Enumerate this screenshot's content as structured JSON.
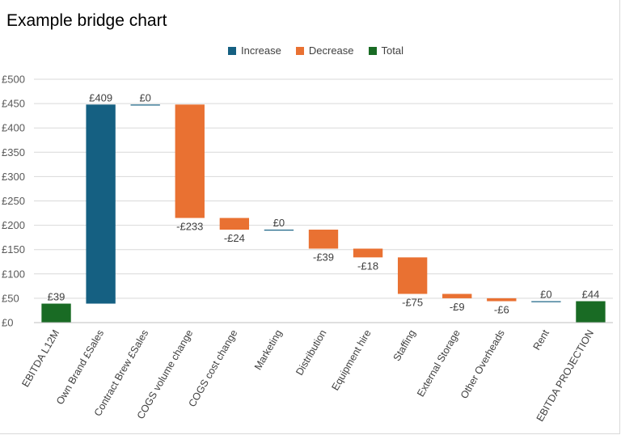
{
  "title": "Example bridge chart",
  "legend": [
    {
      "label": "Increase",
      "color": "#156082"
    },
    {
      "label": "Decrease",
      "color": "#E97132"
    },
    {
      "label": "Total",
      "color": "#196B24"
    }
  ],
  "chart_data": {
    "type": "bar",
    "subtype": "waterfall",
    "title": "Example bridge chart",
    "categories": [
      "EBITDA L12M",
      "Own Brand £Sales",
      "Contract Brew £Sales",
      "COGS volume change",
      "COGS cost change",
      "Marketing",
      "Distribution",
      "Equipment hire",
      "Staffing",
      "External Storage",
      "Other Overheads",
      "Rent",
      "EBITDA PROJECTION"
    ],
    "values": [
      39,
      409,
      0,
      -233,
      -24,
      0,
      -39,
      -18,
      -75,
      -9,
      -6,
      0,
      44
    ],
    "value_labels": [
      "£39",
      "£409",
      "£0",
      "-£233",
      "-£24",
      "£0",
      "-£39",
      "-£18",
      "-£75",
      "-£9",
      "-£6",
      "£0",
      "£44"
    ],
    "kinds": [
      "total",
      "increase",
      "increase",
      "decrease",
      "decrease",
      "increase",
      "decrease",
      "decrease",
      "decrease",
      "decrease",
      "decrease",
      "increase",
      "total"
    ],
    "ylim": [
      0,
      500
    ],
    "yticks": [
      0,
      50,
      100,
      150,
      200,
      250,
      300,
      350,
      400,
      450,
      500
    ],
    "ytick_labels": [
      "£0",
      "£50",
      "£100",
      "£150",
      "£200",
      "£250",
      "£300",
      "£350",
      "£400",
      "£450",
      "£500"
    ],
    "colors": {
      "increase": "#156082",
      "decrease": "#E97132",
      "total": "#196B24"
    },
    "grid": true,
    "legend_position": "top"
  }
}
